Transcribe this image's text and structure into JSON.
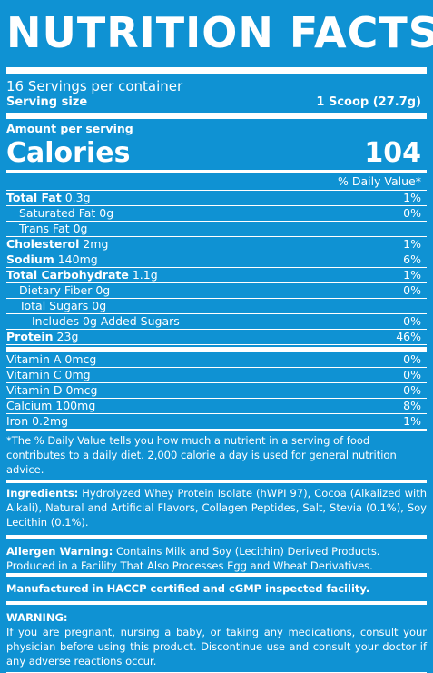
{
  "title": "NUTRITION FACTS",
  "servings_per_container": "16 Servings per container",
  "serving_size": {
    "label": "Serving size",
    "value": "1 Scoop (27.7g)"
  },
  "amount_per_serving": "Amount per serving",
  "calories": {
    "label": "Calories",
    "value": "104"
  },
  "dv_header": "% Daily Value*",
  "nutrients": [
    {
      "label_bold": "Total Fat",
      "label_rest": " 0.3g",
      "dv": "1%",
      "indent": 0
    },
    {
      "label_bold": "",
      "label_rest": "Saturated Fat 0g",
      "dv": "0%",
      "indent": 1
    },
    {
      "label_bold": "",
      "label_rest": "Trans Fat 0g",
      "dv": "",
      "indent": 1
    },
    {
      "label_bold": "Cholesterol",
      "label_rest": " 2mg",
      "dv": "1%",
      "indent": 0
    },
    {
      "label_bold": "Sodium",
      "label_rest": " 140mg",
      "dv": "6%",
      "indent": 0
    },
    {
      "label_bold": "Total Carbohydrate",
      "label_rest": " 1.1g",
      "dv": "1%",
      "indent": 0
    },
    {
      "label_bold": "",
      "label_rest": "Dietary Fiber 0g",
      "dv": "0%",
      "indent": 1
    },
    {
      "label_bold": "",
      "label_rest": "Total Sugars 0g",
      "dv": "",
      "indent": 1
    },
    {
      "label_bold": "",
      "label_rest": "Includes 0g Added Sugars",
      "dv": "0%",
      "indent": 2
    },
    {
      "label_bold": "Protein",
      "label_rest": " 23g",
      "dv": "46%",
      "indent": 0
    }
  ],
  "vitamins": [
    {
      "label": "Vitamin A 0mcg",
      "dv": "0%"
    },
    {
      "label": "Vitamin C 0mg",
      "dv": "0%"
    },
    {
      "label": "Vitamin D 0mcg",
      "dv": "0%"
    },
    {
      "label": "Calcium 100mg",
      "dv": "8%"
    },
    {
      "label": "Iron 0.2mg",
      "dv": "1%"
    }
  ],
  "footnote": "*The % Daily Value tells you how much a nutrient in a serving of food contributes to a daily diet. 2,000 calorie a day is used for general nutrition advice.",
  "ingredients": {
    "label": "Ingredients:",
    "text": " Hydrolyzed Whey Protein Isolate (hWPI 97), Cocoa (Alkalized with Alkali), Natural and Artificial Flavors, Collagen Peptides, Salt, Stevia (0.1%), Soy Lecithin (0.1%)."
  },
  "allergen": {
    "label": "Allergen Warning:",
    "text": " Contains Milk and Soy (Lecithin) Derived Products.",
    "line2": "Produced in a Facility That Also Processes Egg and Wheat Derivatives."
  },
  "manufactured": "Manufactured in HACCP certified and cGMP inspected facility.",
  "warning": {
    "label": "WARNING:",
    "text": "If you are pregnant, nursing a baby, or taking any medications, consult your physician before using this product. Discontinue use and consult your doctor if any adverse reactions occur."
  }
}
